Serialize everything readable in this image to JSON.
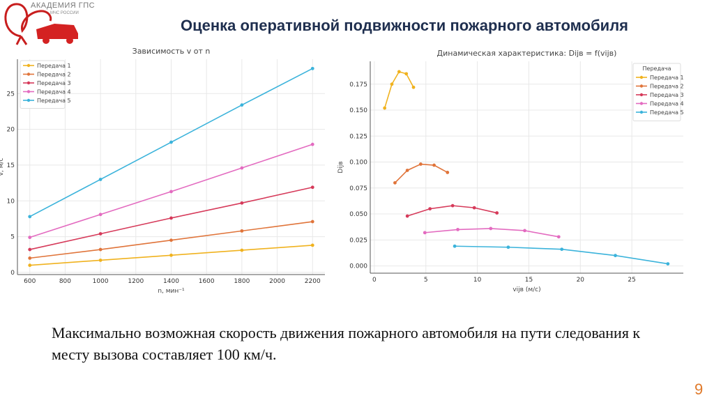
{
  "header": {
    "title": "Оценка оперативной подвижности пожарного автомобиля",
    "logo_text": "АКАДЕМИЯ ГПС",
    "logo_subtext": "МЧС РОССИИ"
  },
  "caption": "Максимально возможная скорость движения пожарного автомобиля на пути следования к месту вызова составляет 100 км/ч.",
  "page_number": "9",
  "colors": {
    "accent": "#e07a2a",
    "title": "#1f2f4f",
    "logo": "#c81e1e"
  },
  "chart_data": [
    {
      "type": "line",
      "title": "Зависимость v от n",
      "xlabel": "n, мин⁻¹",
      "ylabel": "v, м/с",
      "xlim": [
        530,
        2270
      ],
      "ylim": [
        -0.3,
        29.8
      ],
      "xticks": [
        600,
        800,
        1000,
        1200,
        1400,
        1600,
        1800,
        2000,
        2200
      ],
      "yticks": [
        0,
        5,
        10,
        15,
        20,
        25
      ],
      "grid": true,
      "legend": "top-left",
      "x": [
        600,
        1000,
        1400,
        1800,
        2200
      ],
      "series": [
        {
          "name": "Передача 1",
          "color": "#f0b21e",
          "values": [
            1.0,
            1.7,
            2.4,
            3.1,
            3.8
          ]
        },
        {
          "name": "Передача 2",
          "color": "#e0743a",
          "values": [
            2.0,
            3.2,
            4.5,
            5.8,
            7.1
          ]
        },
        {
          "name": "Передача 3",
          "color": "#d63a5a",
          "values": [
            3.2,
            5.4,
            7.6,
            9.7,
            11.9
          ]
        },
        {
          "name": "Передача 4",
          "color": "#e36bc0",
          "values": [
            4.9,
            8.1,
            11.3,
            14.6,
            17.9
          ]
        },
        {
          "name": "Передача 5",
          "color": "#3bb3db",
          "values": [
            7.8,
            13.0,
            18.2,
            23.4,
            28.5
          ]
        }
      ]
    },
    {
      "type": "line",
      "title": "Динамическая характеристика: Dijв = f(vijв)",
      "xlabel": "vijв (м/с)",
      "ylabel": "Dijв",
      "xlim": [
        -0.4,
        30.0
      ],
      "ylim": [
        -0.007,
        0.197
      ],
      "xticks": [
        0,
        5,
        10,
        15,
        20,
        25
      ],
      "yticks": [
        0.0,
        0.025,
        0.05,
        0.075,
        0.1,
        0.125,
        0.15,
        0.175
      ],
      "grid": true,
      "legend": "top-right",
      "legend_title": "Передача",
      "series": [
        {
          "name": "Передача 1",
          "color": "#f0b21e",
          "x": [
            1.0,
            1.7,
            2.4,
            3.1,
            3.8
          ],
          "values": [
            0.152,
            0.175,
            0.187,
            0.185,
            0.172
          ]
        },
        {
          "name": "Передача 2",
          "color": "#e0743a",
          "x": [
            2.0,
            3.2,
            4.5,
            5.8,
            7.1
          ],
          "values": [
            0.08,
            0.092,
            0.098,
            0.097,
            0.09
          ]
        },
        {
          "name": "Передача 3",
          "color": "#d63a5a",
          "x": [
            3.2,
            5.4,
            7.6,
            9.7,
            11.9
          ],
          "values": [
            0.048,
            0.055,
            0.058,
            0.056,
            0.051
          ]
        },
        {
          "name": "Передача 4",
          "color": "#e36bc0",
          "x": [
            4.9,
            8.1,
            11.3,
            14.6,
            17.9
          ],
          "values": [
            0.032,
            0.035,
            0.036,
            0.034,
            0.028
          ]
        },
        {
          "name": "Передача 5",
          "color": "#3bb3db",
          "x": [
            7.8,
            13.0,
            18.2,
            23.4,
            28.5
          ],
          "values": [
            0.019,
            0.018,
            0.016,
            0.01,
            0.002
          ]
        }
      ]
    }
  ]
}
